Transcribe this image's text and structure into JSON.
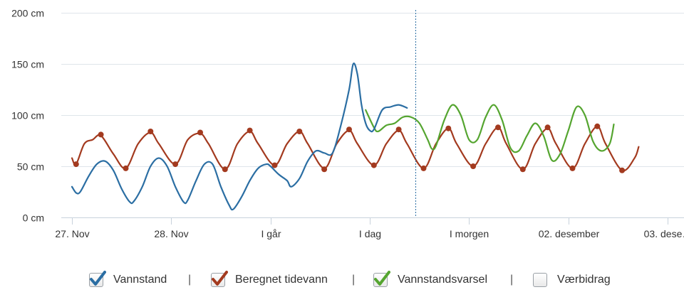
{
  "chart_data": {
    "type": "line",
    "x_unit": "hours",
    "x_ticks": [
      {
        "label": "27. Nov",
        "x": 0
      },
      {
        "label": "28. Nov",
        "x": 24
      },
      {
        "label": "I går",
        "x": 48
      },
      {
        "label": "I dag",
        "x": 72
      },
      {
        "label": "I morgen",
        "x": 96
      },
      {
        "label": "02. desember",
        "x": 120
      },
      {
        "label": "03. dese…",
        "x": 144
      }
    ],
    "xlim": [
      0,
      144
    ],
    "ylim": [
      0,
      200
    ],
    "y_ticks": [
      {
        "label": "0 cm",
        "value": 0
      },
      {
        "label": "50 cm",
        "value": 50
      },
      {
        "label": "100 cm",
        "value": 100
      },
      {
        "label": "150 cm",
        "value": 150
      },
      {
        "label": "200 cm",
        "value": 200
      }
    ],
    "now_x": 83,
    "grid": true,
    "legend_position": "bottom",
    "series": [
      {
        "name": "Vannstand",
        "color": "#2b6ea3",
        "points": [
          [
            0,
            30
          ],
          [
            1,
            24
          ],
          [
            2,
            25
          ],
          [
            4,
            40
          ],
          [
            6,
            52
          ],
          [
            8,
            55
          ],
          [
            10,
            46
          ],
          [
            12,
            28
          ],
          [
            14,
            15
          ],
          [
            15,
            16
          ],
          [
            17,
            30
          ],
          [
            19,
            50
          ],
          [
            21,
            58
          ],
          [
            23,
            50
          ],
          [
            25,
            30
          ],
          [
            27,
            15
          ],
          [
            28,
            17
          ],
          [
            30,
            36
          ],
          [
            32,
            52
          ],
          [
            34,
            52
          ],
          [
            36,
            30
          ],
          [
            38,
            12
          ],
          [
            39,
            8
          ],
          [
            41,
            20
          ],
          [
            43,
            36
          ],
          [
            45,
            48
          ],
          [
            47,
            52
          ],
          [
            48,
            50
          ],
          [
            50,
            42
          ],
          [
            52,
            36
          ],
          [
            53,
            30
          ],
          [
            55,
            38
          ],
          [
            57,
            55
          ],
          [
            59,
            65
          ],
          [
            61,
            63
          ],
          [
            63,
            63
          ],
          [
            65,
            90
          ],
          [
            67,
            125
          ],
          [
            68,
            150
          ],
          [
            69,
            140
          ],
          [
            70,
            110
          ],
          [
            71,
            92
          ],
          [
            72,
            85
          ],
          [
            73,
            86
          ],
          [
            75,
            105
          ],
          [
            77,
            108
          ],
          [
            79,
            110
          ],
          [
            81,
            107
          ]
        ]
      },
      {
        "name": "Beregnet tidevann",
        "color": "#a33a1f",
        "points": [
          [
            0,
            58
          ],
          [
            1,
            52
          ],
          [
            3,
            72
          ],
          [
            5,
            76
          ],
          [
            7,
            80
          ],
          [
            10,
            62
          ],
          [
            13,
            48
          ],
          [
            16,
            72
          ],
          [
            19,
            83
          ],
          [
            21,
            72
          ],
          [
            25,
            52
          ],
          [
            28,
            76
          ],
          [
            31,
            82
          ],
          [
            33,
            72
          ],
          [
            37,
            47
          ],
          [
            40,
            72
          ],
          [
            43,
            84
          ],
          [
            45,
            72
          ],
          [
            49,
            51
          ],
          [
            52,
            72
          ],
          [
            55,
            84
          ],
          [
            57,
            72
          ],
          [
            61,
            48
          ],
          [
            64,
            72
          ],
          [
            67,
            85
          ],
          [
            69,
            72
          ],
          [
            73,
            51
          ],
          [
            76,
            72
          ],
          [
            79,
            85
          ],
          [
            81,
            72
          ],
          [
            85,
            48
          ],
          [
            88,
            72
          ],
          [
            91,
            87
          ],
          [
            93,
            72
          ],
          [
            97,
            50
          ],
          [
            100,
            72
          ],
          [
            103,
            88
          ],
          [
            105,
            72
          ],
          [
            109,
            47
          ],
          [
            112,
            72
          ],
          [
            115,
            87
          ],
          [
            117,
            72
          ],
          [
            121,
            48
          ],
          [
            124,
            72
          ],
          [
            127,
            89
          ],
          [
            129,
            72
          ],
          [
            133,
            46
          ],
          [
            136,
            58
          ],
          [
            137,
            69
          ]
        ]
      },
      {
        "name": "Vannstandsvarsel",
        "color": "#55a530",
        "points": [
          [
            71,
            105
          ],
          [
            73,
            88
          ],
          [
            74,
            84
          ],
          [
            76,
            90
          ],
          [
            78,
            92
          ],
          [
            80,
            98
          ],
          [
            82,
            98
          ],
          [
            84,
            92
          ],
          [
            86,
            76
          ],
          [
            87,
            67
          ],
          [
            88,
            70
          ],
          [
            90,
            95
          ],
          [
            92,
            110
          ],
          [
            94,
            100
          ],
          [
            96,
            76
          ],
          [
            98,
            76
          ],
          [
            100,
            98
          ],
          [
            102,
            110
          ],
          [
            104,
            95
          ],
          [
            106,
            68
          ],
          [
            108,
            65
          ],
          [
            110,
            80
          ],
          [
            112,
            92
          ],
          [
            114,
            80
          ],
          [
            116,
            56
          ],
          [
            118,
            62
          ],
          [
            120,
            85
          ],
          [
            122,
            108
          ],
          [
            124,
            100
          ],
          [
            126,
            74
          ],
          [
            128,
            65
          ],
          [
            130,
            72
          ],
          [
            131,
            91
          ]
        ]
      }
    ],
    "markers": {
      "series": "Beregnet tidevann",
      "color": "#a33a1f",
      "points": [
        [
          1,
          52
        ],
        [
          7,
          81
        ],
        [
          13,
          48
        ],
        [
          19,
          84
        ],
        [
          25,
          52
        ],
        [
          31,
          83
        ],
        [
          37,
          47
        ],
        [
          43,
          85
        ],
        [
          49,
          51
        ],
        [
          55,
          84
        ],
        [
          61,
          47
        ],
        [
          67,
          86
        ],
        [
          73,
          51
        ],
        [
          79,
          86
        ],
        [
          85,
          48
        ],
        [
          91,
          87
        ],
        [
          97,
          50
        ],
        [
          103,
          88
        ],
        [
          109,
          47
        ],
        [
          115,
          88
        ],
        [
          121,
          48
        ],
        [
          127,
          89
        ],
        [
          133,
          46
        ]
      ]
    }
  },
  "legend": {
    "items": [
      {
        "label": "Vannstand",
        "checked": true,
        "check_color": "#2b6ea3"
      },
      {
        "label": "Beregnet tidevann",
        "checked": true,
        "check_color": "#a33a1f"
      },
      {
        "label": "Vannstandsvarsel",
        "checked": true,
        "check_color": "#55a530"
      },
      {
        "label": "Værbidrag",
        "checked": false,
        "check_color": ""
      }
    ],
    "separator": "|"
  }
}
